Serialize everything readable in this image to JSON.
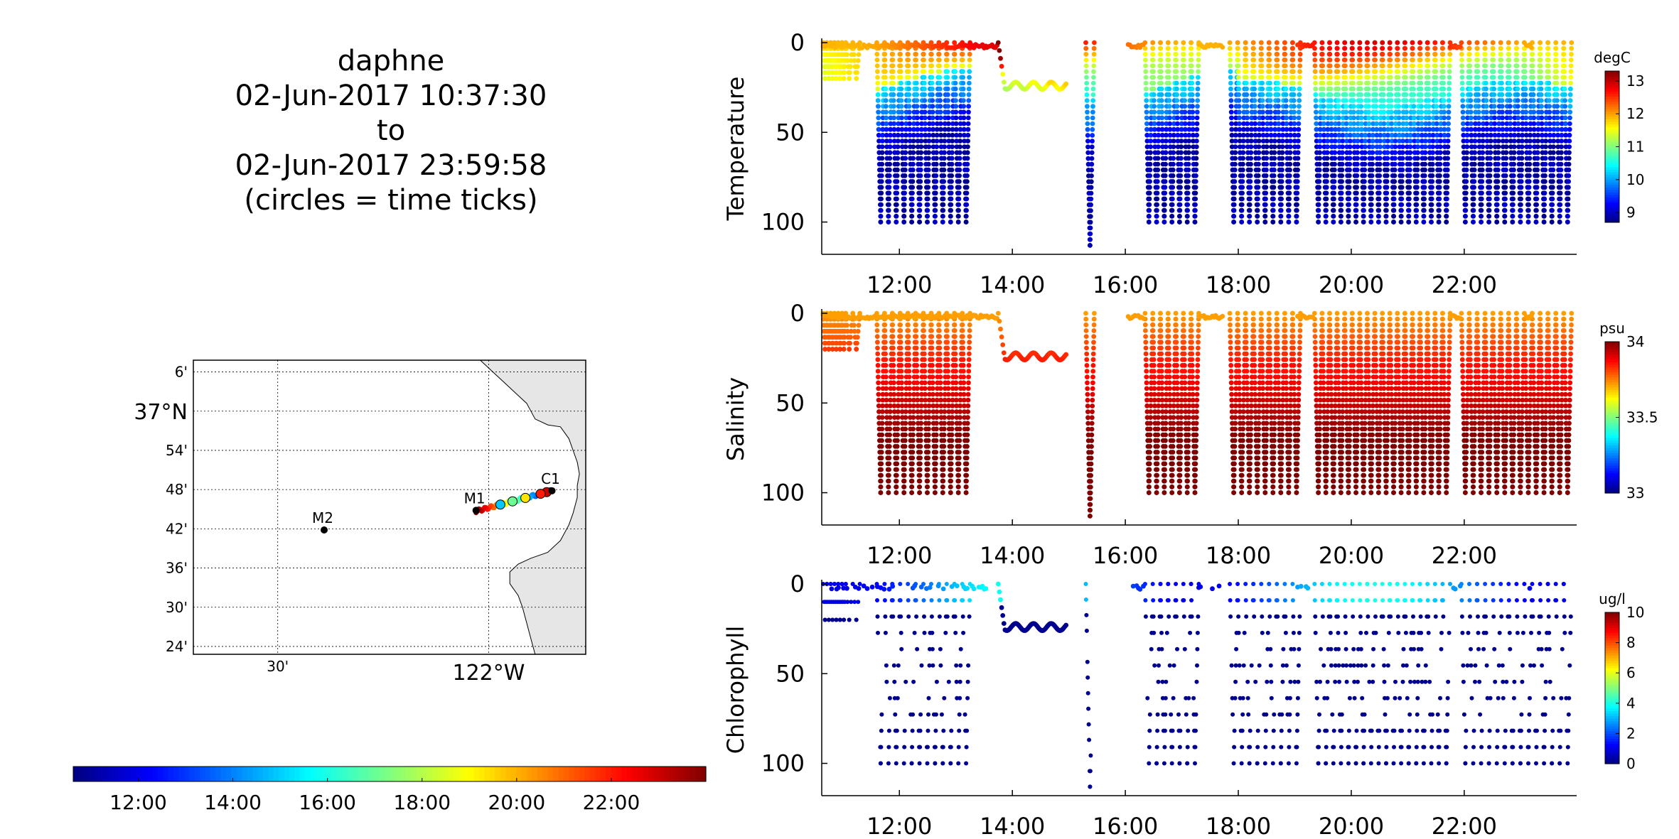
{
  "title": {
    "lines": [
      "daphne",
      "02-Jun-2017 10:37:30",
      "to",
      "02-Jun-2017 23:59:58",
      "(circles = time ticks)"
    ]
  },
  "map": {
    "lat_labels": [
      "6'",
      "37°N",
      "54'",
      "48'",
      "42'",
      "36'",
      "30'",
      "24'"
    ],
    "lat_values": [
      37.1,
      37.0,
      36.9,
      36.8,
      36.7,
      36.6,
      36.5,
      36.4
    ],
    "lon_labels": [
      "30'",
      "122°W"
    ],
    "lon_values": [
      -122.5,
      -122.0
    ],
    "lon_range": [
      -122.7,
      -121.77
    ],
    "lat_range": [
      36.38,
      37.13
    ],
    "stations": [
      {
        "name": "C1",
        "lon": -121.85,
        "lat": 36.797
      },
      {
        "name": "M1",
        "lon": -122.03,
        "lat": 36.747
      },
      {
        "name": "M2",
        "lon": -122.39,
        "lat": 36.697
      }
    ],
    "land_color": "#e6e6e6"
  },
  "time_colorbar": {
    "tick_labels": [
      "12:00",
      "14:00",
      "16:00",
      "18:00",
      "20:00",
      "22:00"
    ],
    "tick_hours": [
      12,
      14,
      16,
      18,
      20,
      22
    ],
    "range_hours": [
      10.625,
      24.0
    ]
  },
  "chart_data": [
    {
      "type": "scatter",
      "ylabel": "Temperature",
      "colorbar_unit": "degC",
      "colorbar_ticks": [
        9,
        10,
        11,
        12,
        13
      ],
      "color_range": [
        8.7,
        13.3
      ],
      "x_ticks": [
        "12:00",
        "14:00",
        "16:00",
        "18:00",
        "20:00",
        "22:00"
      ],
      "x_tick_hours": [
        12,
        14,
        16,
        18,
        20,
        22
      ],
      "y_ticks": [
        0,
        50,
        100
      ],
      "ylim": [
        118,
        0
      ],
      "xlim_hours": [
        10.625,
        23.99
      ],
      "surface_value": 12.4,
      "deep_value": 8.9,
      "thermocline_depth": 22
    },
    {
      "type": "scatter",
      "ylabel": "Salinity",
      "colorbar_unit": "psu",
      "colorbar_ticks": [
        33,
        33.5,
        34
      ],
      "color_range": [
        33.0,
        34.0
      ],
      "x_ticks": [
        "12:00",
        "14:00",
        "16:00",
        "18:00",
        "20:00",
        "22:00"
      ],
      "x_tick_hours": [
        12,
        14,
        16,
        18,
        20,
        22
      ],
      "y_ticks": [
        0,
        50,
        100
      ],
      "ylim": [
        118,
        0
      ],
      "xlim_hours": [
        10.625,
        23.99
      ],
      "surface_value": 33.78,
      "deep_value": 34.0,
      "thermocline_depth": 30
    },
    {
      "type": "scatter",
      "ylabel": "Chlorophyll",
      "colorbar_unit": "ug/l",
      "colorbar_ticks": [
        0,
        2,
        4,
        6,
        8,
        10
      ],
      "color_range": [
        0,
        10
      ],
      "x_ticks": [
        "12:00",
        "14:00",
        "16:00",
        "18:00",
        "20:00",
        "22:00"
      ],
      "x_tick_hours": [
        12,
        14,
        16,
        18,
        20,
        22
      ],
      "y_ticks": [
        0,
        50,
        100
      ],
      "ylim": [
        118,
        0
      ],
      "xlim_hours": [
        10.625,
        23.99
      ],
      "surface_value": 3.0,
      "deep_value": 0.2,
      "thermocline_depth": 15
    }
  ]
}
